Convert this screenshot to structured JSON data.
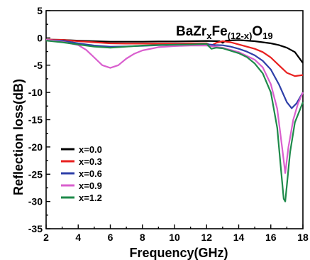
{
  "chart_data": {
    "type": "line",
    "title": "",
    "xlabel": "Frequency(GHz)",
    "ylabel": "Reflection loss(dB)",
    "xlim": [
      2,
      18
    ],
    "ylim": [
      -35,
      5
    ],
    "xticks": [
      2,
      4,
      6,
      8,
      10,
      12,
      14,
      16,
      18
    ],
    "yticks": [
      5,
      0,
      -5,
      -10,
      -15,
      -20,
      -25,
      -30,
      -35
    ],
    "grid": false,
    "legend_position": "bottom-left",
    "annotation": {
      "base": "BaZr",
      "sub1": "x",
      "mid": "Fe",
      "sub2": "(12-x)",
      "tail": "O",
      "sub3": "19"
    },
    "series": [
      {
        "name": "x=0.0",
        "color": "#000000",
        "points": [
          [
            2,
            -0.3
          ],
          [
            3,
            -0.35
          ],
          [
            4,
            -0.5
          ],
          [
            5,
            -0.6
          ],
          [
            6,
            -0.7
          ],
          [
            7,
            -0.7
          ],
          [
            8,
            -0.7
          ],
          [
            9,
            -0.65
          ],
          [
            10,
            -0.65
          ],
          [
            11,
            -0.6
          ],
          [
            12,
            -0.55
          ],
          [
            12.8,
            -0.6
          ],
          [
            13,
            -0.9
          ],
          [
            13.2,
            -0.5
          ],
          [
            14,
            -0.4
          ],
          [
            15,
            -0.6
          ],
          [
            15.5,
            -0.8
          ],
          [
            16,
            -1.0
          ],
          [
            16.5,
            -1.3
          ],
          [
            17,
            -1.8
          ],
          [
            17.5,
            -2.6
          ],
          [
            18,
            -4.6
          ]
        ]
      },
      {
        "name": "x=0.3",
        "color": "#e8201f",
        "points": [
          [
            2,
            -0.3
          ],
          [
            3,
            -0.35
          ],
          [
            4,
            -0.6
          ],
          [
            5,
            -0.8
          ],
          [
            6,
            -1.0
          ],
          [
            7,
            -1.05
          ],
          [
            8,
            -1.05
          ],
          [
            9,
            -1.05
          ],
          [
            10,
            -1.05
          ],
          [
            11,
            -1.0
          ],
          [
            12,
            -1.0
          ],
          [
            12.3,
            -1.4
          ],
          [
            12.6,
            -0.9
          ],
          [
            13,
            -0.6
          ],
          [
            13.5,
            -0.8
          ],
          [
            14,
            -1.2
          ],
          [
            15,
            -2.0
          ],
          [
            15.5,
            -2.6
          ],
          [
            16,
            -3.6
          ],
          [
            16.5,
            -5.0
          ],
          [
            17,
            -6.4
          ],
          [
            17.5,
            -7.0
          ],
          [
            18,
            -6.8
          ]
        ]
      },
      {
        "name": "x=0.6",
        "color": "#2e3fa8",
        "points": [
          [
            2,
            -0.4
          ],
          [
            3,
            -0.5
          ],
          [
            4,
            -1.0
          ],
          [
            5,
            -1.4
          ],
          [
            6,
            -1.6
          ],
          [
            7,
            -1.55
          ],
          [
            8,
            -1.45
          ],
          [
            9,
            -1.35
          ],
          [
            10,
            -1.25
          ],
          [
            11,
            -1.2
          ],
          [
            12,
            -1.15
          ],
          [
            12.5,
            -1.3
          ],
          [
            13,
            -1.35
          ],
          [
            13.5,
            -1.6
          ],
          [
            14,
            -2.0
          ],
          [
            14.5,
            -2.5
          ],
          [
            15,
            -3.2
          ],
          [
            15.5,
            -4.2
          ],
          [
            16,
            -5.8
          ],
          [
            16.5,
            -8.5
          ],
          [
            17,
            -11.8
          ],
          [
            17.3,
            -12.9
          ],
          [
            17.6,
            -12.0
          ],
          [
            18,
            -10.0
          ]
        ]
      },
      {
        "name": "x=0.9",
        "color": "#d95fce",
        "points": [
          [
            2,
            -0.3
          ],
          [
            3,
            -0.7
          ],
          [
            4,
            -1.3
          ],
          [
            4.5,
            -2.2
          ],
          [
            5,
            -3.6
          ],
          [
            5.5,
            -5.0
          ],
          [
            6,
            -5.5
          ],
          [
            6.5,
            -5.0
          ],
          [
            7,
            -3.8
          ],
          [
            7.5,
            -2.9
          ],
          [
            8,
            -2.3
          ],
          [
            9,
            -1.7
          ],
          [
            10,
            -1.5
          ],
          [
            11,
            -1.4
          ],
          [
            12,
            -1.4
          ],
          [
            13,
            -1.8
          ],
          [
            14,
            -2.6
          ],
          [
            15,
            -4.0
          ],
          [
            15.5,
            -5.4
          ],
          [
            16,
            -8.5
          ],
          [
            16.4,
            -13.0
          ],
          [
            16.7,
            -20.0
          ],
          [
            16.9,
            -24.8
          ],
          [
            17.1,
            -20.0
          ],
          [
            17.4,
            -15.0
          ],
          [
            17.7,
            -12.0
          ],
          [
            18,
            -10.0
          ]
        ]
      },
      {
        "name": "x=1.2",
        "color": "#1e8a4a",
        "points": [
          [
            2,
            -0.5
          ],
          [
            3,
            -0.8
          ],
          [
            4,
            -1.2
          ],
          [
            5,
            -1.6
          ],
          [
            6,
            -1.8
          ],
          [
            7,
            -1.6
          ],
          [
            8,
            -1.4
          ],
          [
            9,
            -1.3
          ],
          [
            10,
            -1.25
          ],
          [
            11,
            -1.2
          ],
          [
            12,
            -1.1
          ],
          [
            12.3,
            -2.0
          ],
          [
            12.6,
            -1.8
          ],
          [
            13,
            -1.9
          ],
          [
            14,
            -2.8
          ],
          [
            14.5,
            -3.5
          ],
          [
            15,
            -4.7
          ],
          [
            15.5,
            -6.5
          ],
          [
            16,
            -10.0
          ],
          [
            16.4,
            -16.5
          ],
          [
            16.6,
            -23.0
          ],
          [
            16.8,
            -29.5
          ],
          [
            16.9,
            -30.0
          ],
          [
            17.0,
            -27.0
          ],
          [
            17.2,
            -21.0
          ],
          [
            17.5,
            -15.5
          ],
          [
            18,
            -11.8
          ]
        ]
      }
    ]
  }
}
